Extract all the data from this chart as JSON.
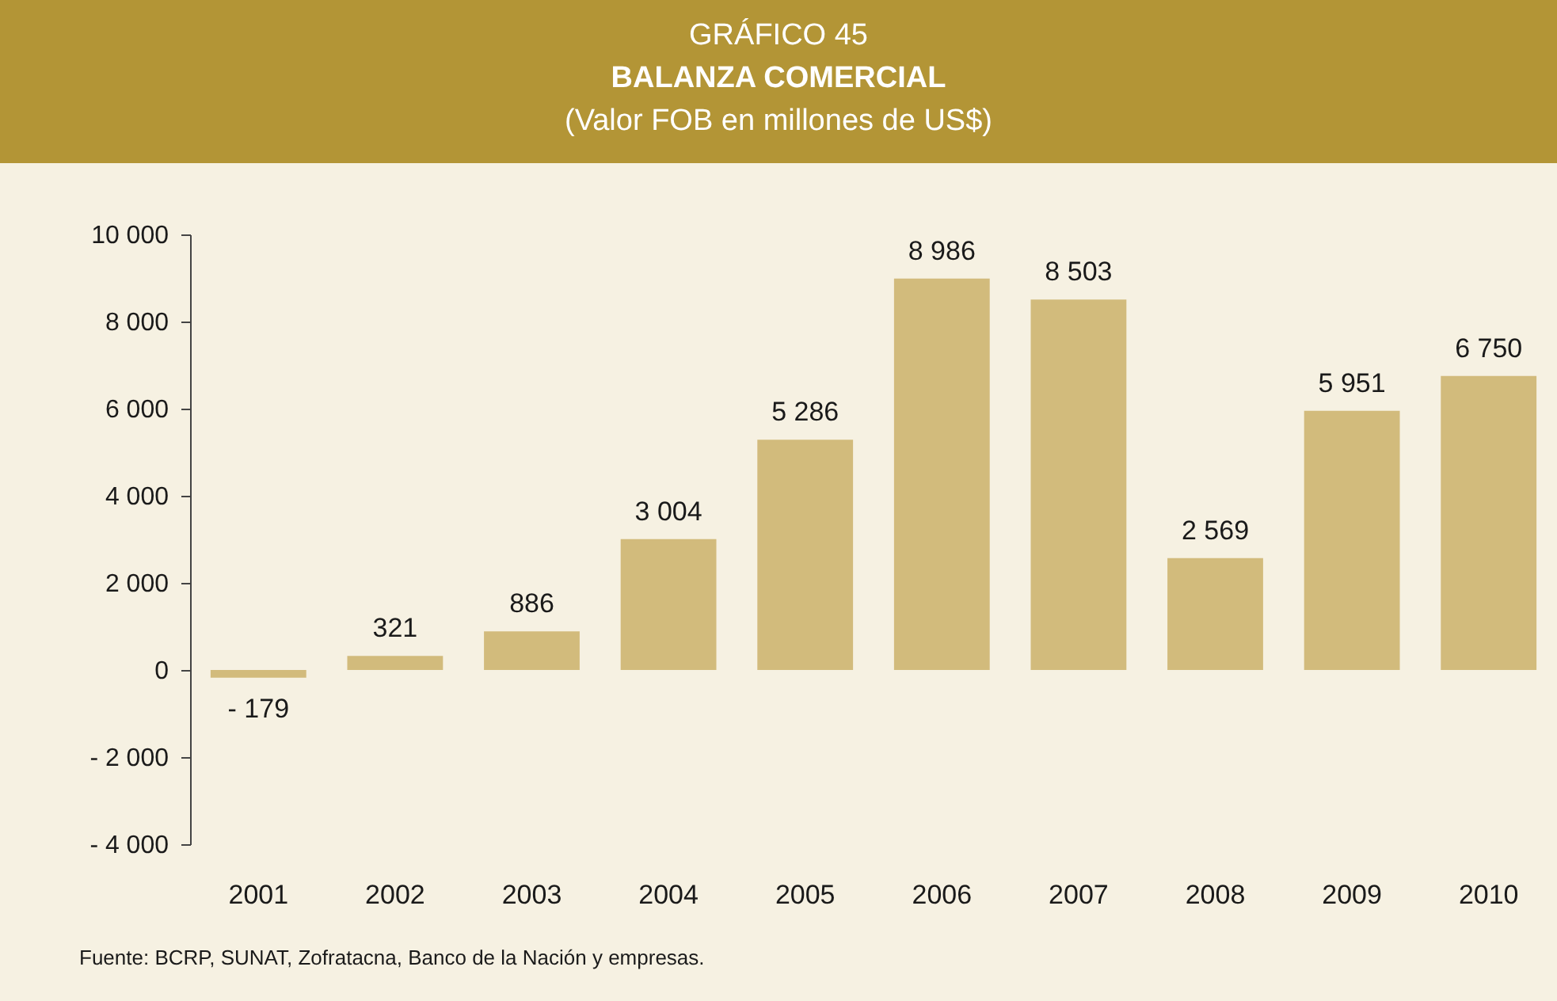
{
  "chart_data": {
    "type": "bar",
    "title": "BALANZA COMERCIAL",
    "subtitle": "(Valor FOB en millones de US$)",
    "annotations": [
      "GRÁFICO 45",
      "Fuente: BCRP, SUNAT, Zofratacna, Banco de la Nación y empresas."
    ],
    "categories": [
      "2001",
      "2002",
      "2003",
      "2004",
      "2005",
      "2006",
      "2007",
      "2008",
      "2009",
      "2010"
    ],
    "values": [
      -179,
      321,
      886,
      3004,
      5286,
      8986,
      8503,
      2569,
      5951,
      6750
    ],
    "value_labels": [
      "- 179",
      "321",
      "886",
      "3 004",
      "5 286",
      "8 986",
      "8 503",
      "2 569",
      "5 951",
      "6 750"
    ],
    "color": "#d2bb7c",
    "ylim": [
      -4000,
      10000
    ],
    "yticks": [
      {
        "value": -4000,
        "label": "- 4 000"
      },
      {
        "value": -2000,
        "label": "- 2 000"
      },
      0,
      {
        "value": 2000,
        "label": "2 000"
      },
      {
        "value": 4000,
        "label": "4 000"
      },
      {
        "value": 6000,
        "label": "6 000"
      },
      {
        "value": 8000,
        "label": "8 000"
      },
      {
        "value": 10000,
        "label": "10 000"
      }
    ],
    "grid": false
  }
}
